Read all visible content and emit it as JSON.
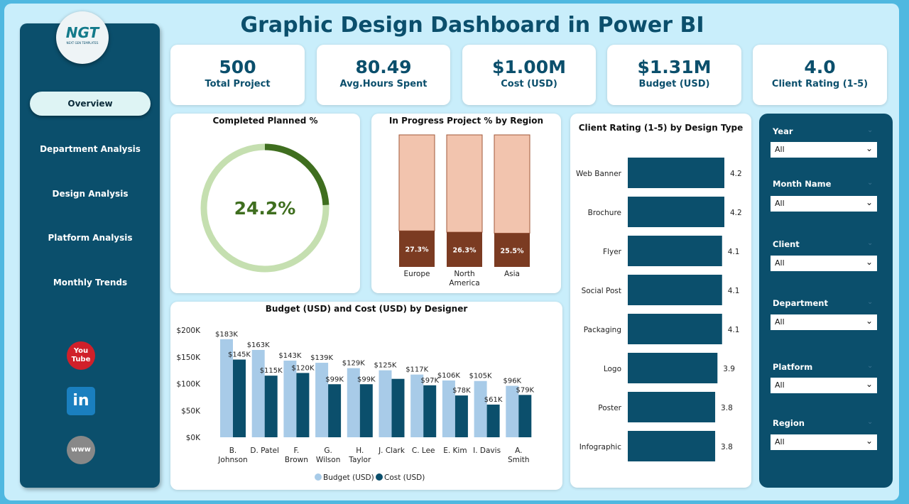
{
  "header": {
    "title": "Graphic Design Dashboard in Power BI"
  },
  "logo": {
    "text": "NGT",
    "subtext": "NEXT GEN TEMPLATES"
  },
  "nav": [
    {
      "label": "Overview",
      "active": true
    },
    {
      "label": "Department Analysis"
    },
    {
      "label": "Design Analysis"
    },
    {
      "label": "Platform Analysis"
    },
    {
      "label": "Monthly Trends"
    }
  ],
  "social": [
    {
      "icon": "youtube-icon",
      "label": "You Tube"
    },
    {
      "icon": "linkedin-icon",
      "label": "in"
    },
    {
      "icon": "globe-icon",
      "label": "www"
    }
  ],
  "kpis": [
    {
      "value": "500",
      "label": "Total Project"
    },
    {
      "value": "80.49",
      "label": "Avg.Hours Spent"
    },
    {
      "value": "$1.00M",
      "label": "Cost (USD)"
    },
    {
      "value": "$1.31M",
      "label": "Budget (USD)"
    },
    {
      "value": "4.0",
      "label": "Client Rating (1-5)"
    }
  ],
  "colors": {
    "primary": "#0b4f6c",
    "donut_fill": "#3f6e1f",
    "donut_track": "#c5dfb0",
    "region_top": "#f2c4ae",
    "region_bottom": "#7b3b22",
    "budget": "#a8cbe8",
    "cost": "#0b4f6c"
  },
  "chart_data": [
    {
      "type": "pie",
      "title": "Completed Planned %",
      "values": [
        24.2,
        75.8
      ],
      "label": "24.2%"
    },
    {
      "type": "bar",
      "stacked": true,
      "title": "In Progress Project % by Region",
      "categories": [
        "Europe",
        "North America",
        "Asia"
      ],
      "series": [
        {
          "values": [
            27.3,
            26.3,
            25.5
          ],
          "labels": [
            "27.3%",
            "26.3%",
            "25.5%"
          ]
        }
      ]
    },
    {
      "type": "bar",
      "orientation": "horizontal",
      "title": "Client Rating (1-5) by Design Type",
      "categories": [
        "Web Banner",
        "Brochure",
        "Flyer",
        "Social Post",
        "Packaging",
        "Logo",
        "Poster",
        "Infographic"
      ],
      "values": [
        4.2,
        4.2,
        4.1,
        4.1,
        4.1,
        3.9,
        3.8,
        3.8
      ],
      "xlim": [
        0,
        4.2
      ]
    },
    {
      "type": "bar",
      "title": "Budget (USD) and Cost (USD) by Designer",
      "categories": [
        "B. Johnson",
        "D. Patel",
        "F. Brown",
        "G. Wilson",
        "H. Taylor",
        "J. Clark",
        "C. Lee",
        "E. Kim",
        "I. Davis",
        "A. Smith"
      ],
      "yticks": [
        "$0K",
        "$50K",
        "$100K",
        "$150K",
        "$200K"
      ],
      "ylim": [
        0,
        200
      ],
      "legend": "bottom",
      "series": [
        {
          "name": "Budget (USD)",
          "values": [
            183,
            163,
            143,
            139,
            129,
            125,
            117,
            106,
            105,
            96
          ],
          "labels": [
            "$183K",
            "$163K",
            "$143K",
            "$139K",
            "$129K",
            "$125K",
            "$117K",
            "$106K",
            "$105K",
            "$96K"
          ]
        },
        {
          "name": "Cost (USD)",
          "values": [
            145,
            115,
            120,
            99,
            99,
            109,
            97,
            78,
            61,
            79
          ],
          "labels": [
            "$145K",
            "$115K",
            "$120K",
            "$99K",
            "$99K",
            "",
            "$97K",
            "$78K",
            "$61K",
            "$79K"
          ]
        }
      ]
    }
  ],
  "slicers": [
    {
      "label": "Year",
      "value": "All"
    },
    {
      "label": "Month Name",
      "value": "All"
    },
    {
      "label": "Client",
      "value": "All"
    },
    {
      "label": "Department",
      "value": "All"
    },
    {
      "label": "Platform",
      "value": "All"
    },
    {
      "label": "Region",
      "value": "All"
    }
  ]
}
